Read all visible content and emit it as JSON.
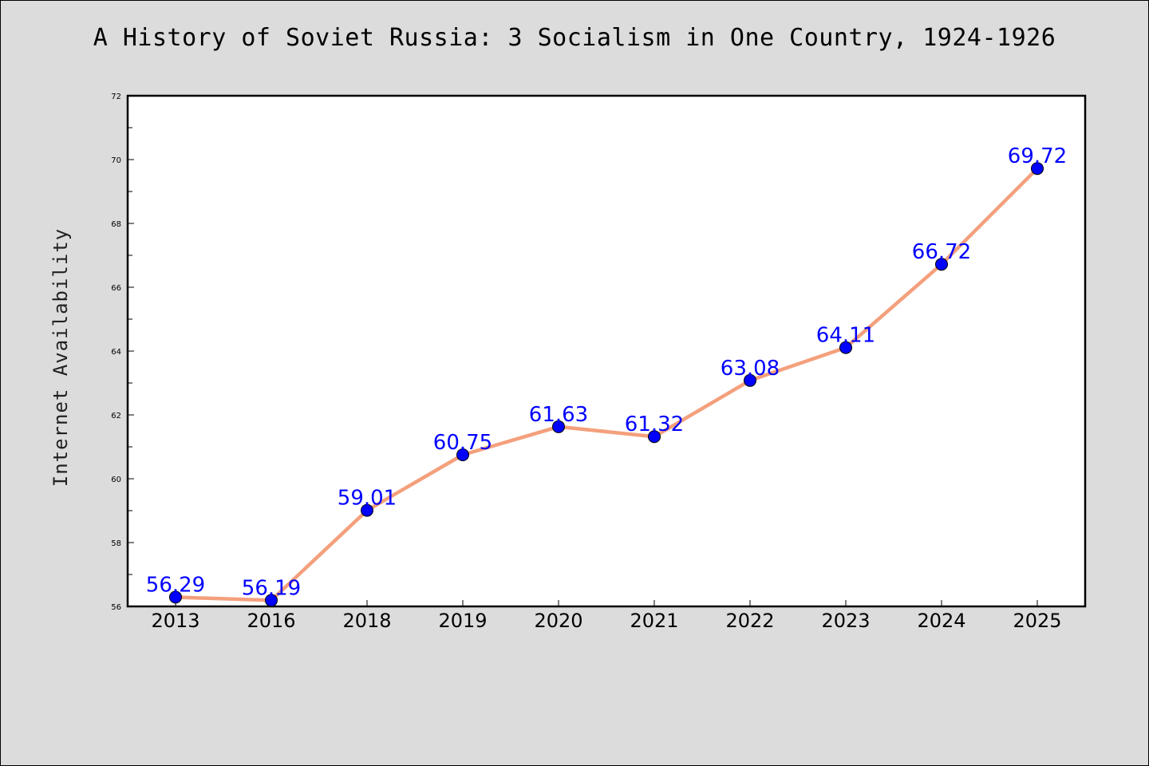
{
  "colors": {
    "background": "#dcdcdc",
    "plot_background": "#ffffff",
    "line": "#f4a07c",
    "marker": "#0000ff",
    "label": "#0000ff"
  },
  "chart_data": {
    "type": "line",
    "title": "A History of Soviet Russia: 3 Socialism in One Country, 1924-1926",
    "xlabel": "",
    "ylabel": "Internet Availability",
    "categories": [
      "2013",
      "2016",
      "2018",
      "2019",
      "2020",
      "2021",
      "2022",
      "2023",
      "2024",
      "2025"
    ],
    "series": [
      {
        "values": [
          56.29,
          56.19,
          59.01,
          60.75,
          61.63,
          61.32,
          63.08,
          64.11,
          66.72,
          69.72
        ],
        "labels": [
          "56.29",
          "56.19",
          "59.01",
          "60.75",
          "61.63",
          "61.32",
          "63.08",
          "64.11",
          "66.72",
          "69.72"
        ]
      }
    ],
    "ylim": [
      56,
      72
    ],
    "yticks": [
      "56",
      "58",
      "60",
      "62",
      "64",
      "66",
      "68",
      "70",
      "72"
    ],
    "grid": false,
    "legend": "none"
  }
}
